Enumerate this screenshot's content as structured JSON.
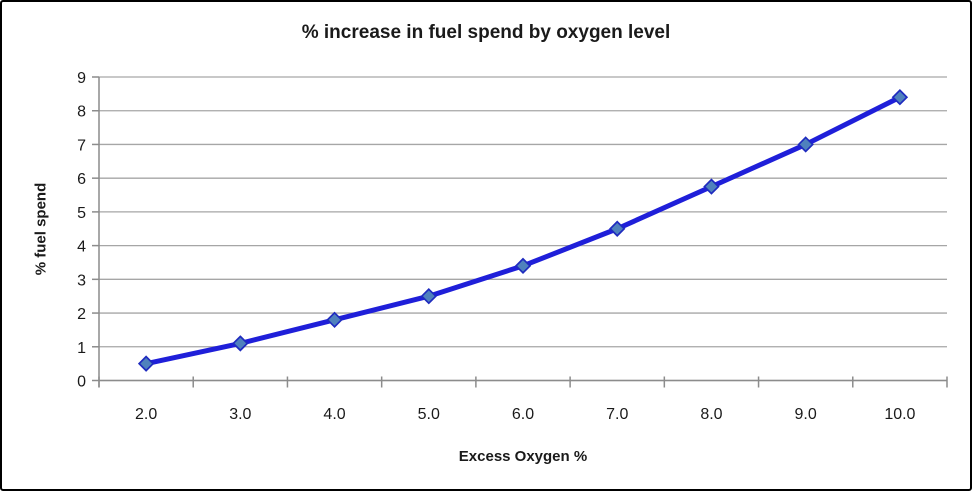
{
  "chart_data": {
    "type": "line",
    "title": "% increase in fuel spend by oxygen level",
    "xlabel": "Excess Oxygen %",
    "ylabel": "% fuel spend",
    "categories": [
      "2.0",
      "3.0",
      "4.0",
      "5.0",
      "6.0",
      "7.0",
      "8.0",
      "9.0",
      "10.0"
    ],
    "series": [
      {
        "name": "% fuel spend",
        "values": [
          0.5,
          1.1,
          1.8,
          2.5,
          3.4,
          4.5,
          5.75,
          7.0,
          8.4
        ]
      }
    ],
    "y_ticks": [
      "0",
      "1",
      "2",
      "3",
      "4",
      "5",
      "6",
      "7",
      "8",
      "9"
    ],
    "ylim": [
      0,
      9
    ],
    "grid": "horizontal",
    "legend": "none",
    "marker": "diamond"
  },
  "colors": {
    "line": "#1f1fd9",
    "marker_fill": "#4f81bd",
    "marker_stroke": "#1f2bbf",
    "gridline": "#a6a6a6",
    "axis": "#8c8c8c",
    "text": "#1a1a1a",
    "frame_border": "#000000",
    "background": "#ffffff"
  }
}
